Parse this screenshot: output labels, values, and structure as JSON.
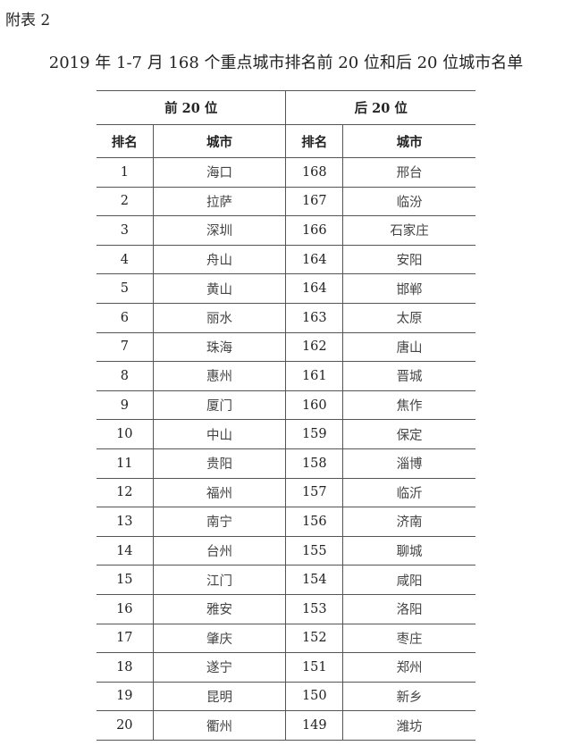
{
  "label": "附表 2",
  "title": "2019 年 1-7 月 168 个重点城市排名前 20 位和后 20 位城市名单",
  "groups": {
    "top": "前 20 位",
    "bottom": "后 20 位"
  },
  "columns": {
    "rank": "排名",
    "city": "城市"
  },
  "rows": [
    [
      "1",
      "海口",
      "168",
      "邢台"
    ],
    [
      "2",
      "拉萨",
      "167",
      "临汾"
    ],
    [
      "3",
      "深圳",
      "166",
      "石家庄"
    ],
    [
      "4",
      "舟山",
      "164",
      "安阳"
    ],
    [
      "5",
      "黄山",
      "164",
      "邯郸"
    ],
    [
      "6",
      "丽水",
      "163",
      "太原"
    ],
    [
      "7",
      "珠海",
      "162",
      "唐山"
    ],
    [
      "8",
      "惠州",
      "161",
      "晋城"
    ],
    [
      "9",
      "厦门",
      "160",
      "焦作"
    ],
    [
      "10",
      "中山",
      "159",
      "保定"
    ],
    [
      "11",
      "贵阳",
      "158",
      "淄博"
    ],
    [
      "12",
      "福州",
      "157",
      "临沂"
    ],
    [
      "13",
      "南宁",
      "156",
      "济南"
    ],
    [
      "14",
      "台州",
      "155",
      "聊城"
    ],
    [
      "15",
      "江门",
      "154",
      "咸阳"
    ],
    [
      "16",
      "雅安",
      "153",
      "洛阳"
    ],
    [
      "17",
      "肇庆",
      "152",
      "枣庄"
    ],
    [
      "18",
      "遂宁",
      "151",
      "郑州"
    ],
    [
      "19",
      "昆明",
      "150",
      "新乡"
    ],
    [
      "20",
      "衢州",
      "149",
      "潍坊"
    ]
  ]
}
